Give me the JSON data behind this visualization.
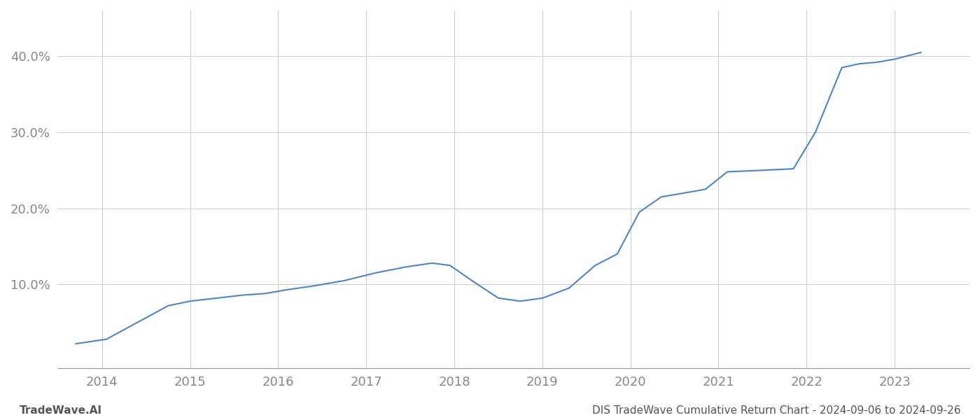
{
  "x_values": [
    2013.7,
    2014.05,
    2014.4,
    2014.75,
    2015.0,
    2015.3,
    2015.6,
    2015.85,
    2016.1,
    2016.4,
    2016.75,
    2017.1,
    2017.45,
    2017.75,
    2017.95,
    2018.2,
    2018.5,
    2018.75,
    2019.0,
    2019.3,
    2019.6,
    2019.85,
    2020.1,
    2020.35,
    2020.6,
    2020.85,
    2021.1,
    2021.5,
    2021.85,
    2022.1,
    2022.4,
    2022.6,
    2022.8,
    2023.0,
    2023.3
  ],
  "y_values": [
    2.2,
    2.8,
    5.0,
    7.2,
    7.8,
    8.2,
    8.6,
    8.8,
    9.3,
    9.8,
    10.5,
    11.5,
    12.3,
    12.8,
    12.5,
    10.5,
    8.2,
    7.8,
    8.2,
    9.5,
    12.5,
    14.0,
    19.5,
    21.5,
    22.0,
    22.5,
    24.8,
    25.0,
    25.2,
    30.0,
    38.5,
    39.0,
    39.2,
    39.6,
    40.5
  ],
  "line_color": "#4a86c8",
  "line_width": 1.5,
  "background_color": "#ffffff",
  "grid_color": "#cccccc",
  "ytick_labels": [
    "10.0%",
    "20.0%",
    "30.0%",
    "40.0%"
  ],
  "ytick_values": [
    10,
    20,
    30,
    40
  ],
  "xtick_labels": [
    "2014",
    "2015",
    "2016",
    "2017",
    "2018",
    "2019",
    "2020",
    "2021",
    "2022",
    "2023"
  ],
  "xtick_values": [
    2014,
    2015,
    2016,
    2017,
    2018,
    2019,
    2020,
    2021,
    2022,
    2023
  ],
  "xlim": [
    2013.5,
    2023.85
  ],
  "ylim": [
    -1,
    46
  ],
  "footer_left": "TradeWave.AI",
  "footer_right": "DIS TradeWave Cumulative Return Chart - 2024-09-06 to 2024-09-26",
  "footer_fontsize": 11,
  "tick_fontsize": 13,
  "spine_color": "#999999"
}
